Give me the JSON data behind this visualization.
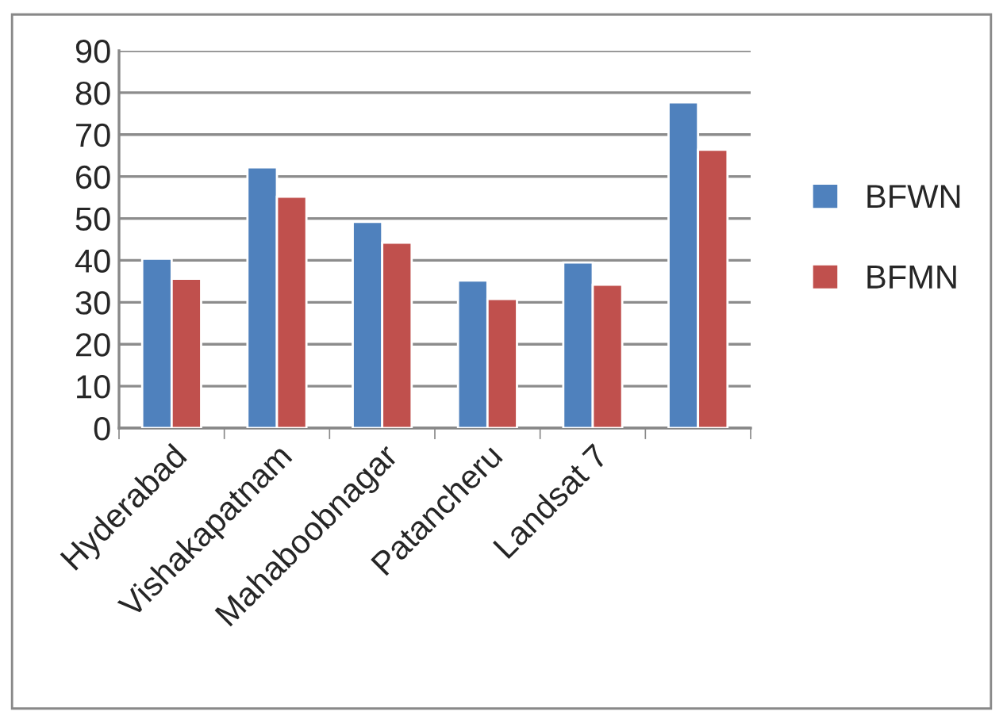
{
  "chart_data": {
    "type": "bar",
    "categories": [
      "Hyderabad",
      "Vishakapatnam",
      "Mahaboobnagar",
      "Patancheru",
      "Landsat 7",
      null
    ],
    "series": [
      {
        "name": "BFWN",
        "color": "#4f81bd",
        "values": [
          40.4,
          62.2,
          49.2,
          35.2,
          39.5,
          77.7
        ]
      },
      {
        "name": "BFMN",
        "color": "#c0504d",
        "values": [
          35.6,
          55.2,
          44.2,
          30.8,
          34.2,
          66.4
        ]
      }
    ],
    "ylim": [
      0,
      90
    ],
    "yticks": [
      0,
      10,
      20,
      30,
      40,
      50,
      60,
      70,
      80,
      90
    ],
    "grid": "y",
    "legend": "right"
  }
}
